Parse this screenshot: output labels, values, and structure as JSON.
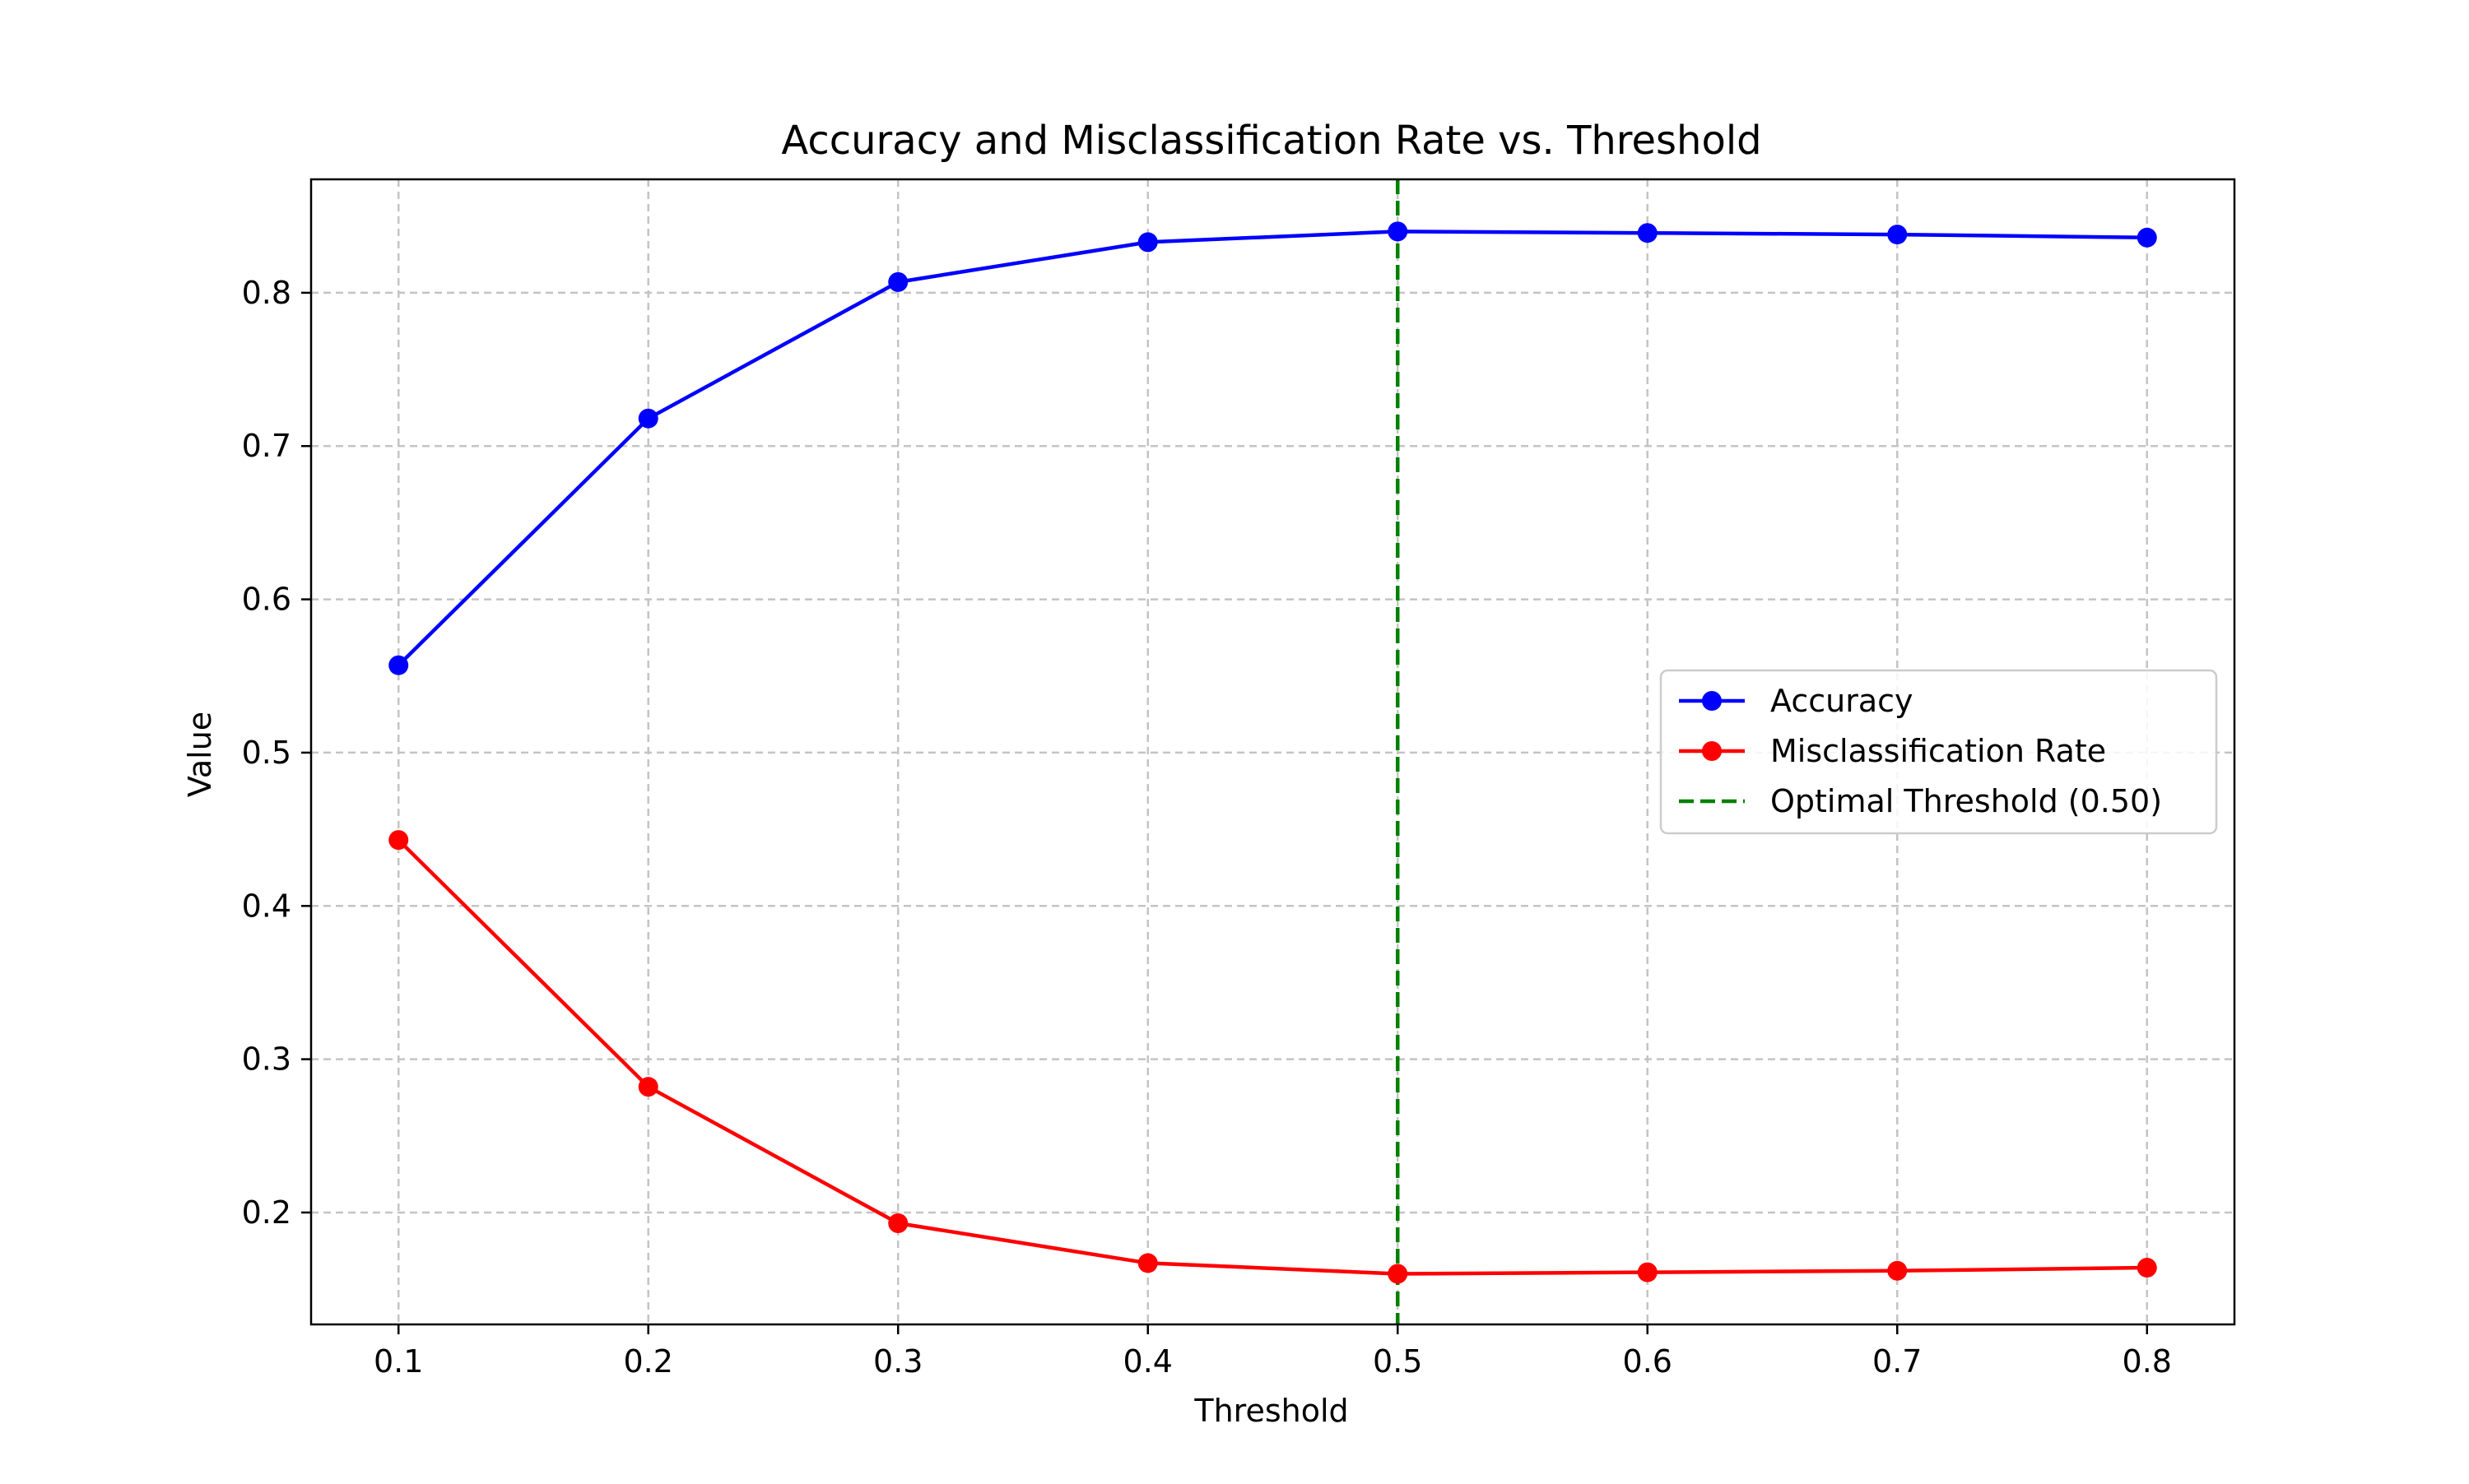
{
  "chart_data": {
    "type": "line",
    "title": "Accuracy and Misclassification Rate vs. Threshold",
    "xlabel": "Threshold",
    "ylabel": "Value",
    "x": [
      0.1,
      0.2,
      0.3,
      0.4,
      0.5,
      0.6,
      0.7,
      0.8
    ],
    "xlim": [
      0.065,
      0.835
    ],
    "ylim": [
      0.127,
      0.874
    ],
    "xticks": [
      0.1,
      0.2,
      0.3,
      0.4,
      0.5,
      0.6,
      0.7,
      0.8
    ],
    "xtick_labels": [
      "0.1",
      "0.2",
      "0.3",
      "0.4",
      "0.5",
      "0.6",
      "0.7",
      "0.8"
    ],
    "yticks": [
      0.2,
      0.3,
      0.4,
      0.5,
      0.6,
      0.7,
      0.8
    ],
    "ytick_labels": [
      "0.2",
      "0.3",
      "0.4",
      "0.5",
      "0.6",
      "0.7",
      "0.8"
    ],
    "grid": true,
    "legend_position": "center-right",
    "series": [
      {
        "name": "Accuracy",
        "color": "#0000ff",
        "marker": "circle",
        "values": [
          0.557,
          0.718,
          0.807,
          0.833,
          0.84,
          0.839,
          0.838,
          0.836
        ]
      },
      {
        "name": "Misclassification Rate",
        "color": "#ff0000",
        "marker": "circle",
        "values": [
          0.443,
          0.282,
          0.193,
          0.167,
          0.16,
          0.161,
          0.162,
          0.164
        ]
      }
    ],
    "reference_lines": [
      {
        "name": "Optimal Threshold (0.50)",
        "orientation": "vertical",
        "x": 0.5,
        "color": "#008000",
        "style": "dashed"
      }
    ]
  }
}
